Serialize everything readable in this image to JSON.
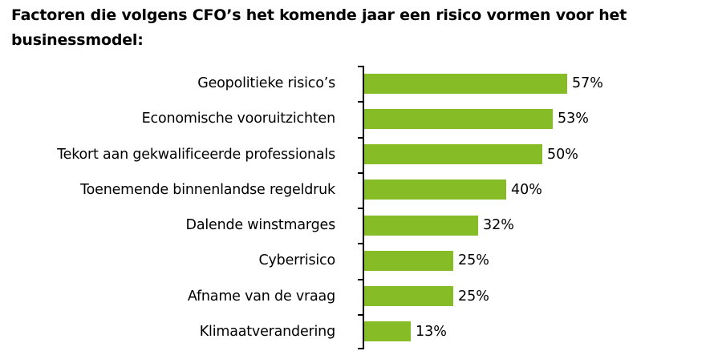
{
  "title": "Factoren die volgens CFO’s het komende jaar een risico vormen voor het businessmodel:",
  "colors": {
    "bar": "#86bc25",
    "axis": "#000000",
    "text": "#000000",
    "background": "#ffffff"
  },
  "chart_data": {
    "type": "bar",
    "orientation": "horizontal",
    "title": "Factoren die volgens CFO’s het komende jaar een risico vormen voor het businessmodel:",
    "xlabel": "",
    "ylabel": "",
    "categories": [
      "Geopolitieke risico’s",
      "Economische vooruitzichten",
      "Tekort aan gekwalificeerde professionals",
      "Toenemende binnenlandse regeldruk",
      "Dalende winstmarges",
      "Cyberrisico",
      "Afname van de vraag",
      "Klimaatverandering"
    ],
    "values": [
      57,
      53,
      50,
      40,
      32,
      25,
      25,
      13
    ],
    "value_labels": [
      "57%",
      "53%",
      "50%",
      "40%",
      "32%",
      "25%",
      "25%",
      "13%"
    ],
    "unit": "%",
    "xlim": [
      0,
      100
    ],
    "grid": false,
    "legend": null,
    "bar_color": "#86bc25"
  }
}
